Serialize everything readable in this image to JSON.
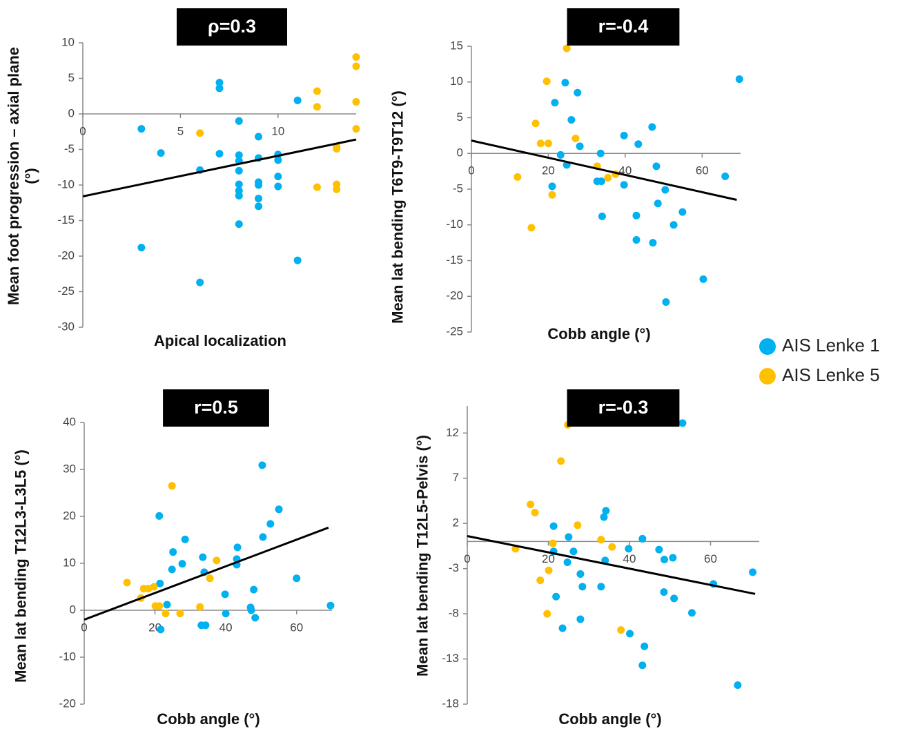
{
  "chart_data": [
    {
      "type": "scatter",
      "title": "ρ=0.3",
      "xlabel": "Apical localization",
      "ylabel": "Mean foot progression – axial plane (°)",
      "xlim": [
        0,
        14
      ],
      "ylim": [
        -30,
        10
      ],
      "xticks": [
        0,
        5,
        10
      ],
      "yticks": [
        -30,
        -25,
        -20,
        -15,
        -10,
        -5,
        0,
        5,
        10
      ],
      "series": [
        {
          "name": "AIS Lenke 1",
          "color": "#00b0f0",
          "x": [
            3,
            4,
            3,
            6,
            6,
            7,
            7,
            7,
            8,
            8,
            8,
            8,
            8,
            8,
            8,
            8,
            9,
            9,
            9,
            9,
            9,
            9,
            10,
            10,
            10,
            10,
            11,
            11
          ],
          "y": [
            -2.1,
            -5.5,
            -18.8,
            -7.9,
            -23.7,
            4.4,
            3.6,
            -5.6,
            -1,
            -5.8,
            -6.6,
            -8,
            -9.9,
            -10.8,
            -11.5,
            -15.5,
            -3.2,
            -6.2,
            -9.6,
            -10,
            -11.9,
            -13,
            -5.7,
            -6.5,
            -8.8,
            -10.2,
            1.9,
            -20.6
          ]
        },
        {
          "name": "AIS Lenke 5",
          "color": "#ffc000",
          "x": [
            6,
            12,
            12,
            12,
            13,
            13,
            13,
            13,
            14,
            14,
            14,
            14
          ],
          "y": [
            -2.7,
            3.2,
            1,
            -10.3,
            -4.6,
            -4.9,
            -9.9,
            -10.6,
            8,
            6.7,
            1.7,
            -2.1
          ]
        }
      ],
      "trendline": {
        "x": [
          0,
          14
        ],
        "y": [
          -11.6,
          -3.6
        ]
      }
    },
    {
      "type": "scatter",
      "title": "r=-0.4",
      "xlabel": "Cobb angle (°)",
      "ylabel": "Mean lat bending T6T9-T9T12 (°)",
      "xlim": [
        0,
        70
      ],
      "ylim": [
        -25,
        15
      ],
      "xticks": [
        0,
        20,
        40,
        60
      ],
      "yticks": [
        -25,
        -20,
        -15,
        -10,
        -5,
        0,
        5,
        10,
        15
      ],
      "series": [
        {
          "name": "AIS Lenke 1",
          "color": "#00b0f0",
          "x": [
            21.7,
            21,
            23.2,
            24.4,
            24.8,
            26,
            27.6,
            28.2,
            33.6,
            32.7,
            33.8,
            34,
            39.7,
            39.7,
            43.4,
            42.9,
            42.9,
            47,
            48.1,
            47.2,
            48.5,
            50.4,
            50.6,
            52.6,
            54.9,
            60.3,
            66,
            69.7
          ],
          "y": [
            7.1,
            -4.6,
            -0.2,
            9.9,
            -1.6,
            4.7,
            8.5,
            1,
            0,
            -3.9,
            -3.9,
            -8.8,
            2.5,
            -4.4,
            1.3,
            -8.7,
            -12.1,
            3.7,
            -1.8,
            -12.5,
            -7,
            -5.1,
            -20.8,
            -10,
            -8.2,
            -17.6,
            -3.2,
            10.4
          ]
        },
        {
          "name": "AIS Lenke 5",
          "color": "#ffc000",
          "x": [
            12,
            15.6,
            16.7,
            18,
            19.6,
            20,
            21,
            24.8,
            27.1,
            32.7,
            35.5,
            37.5
          ],
          "y": [
            -3.3,
            -10.4,
            4.2,
            1.4,
            10.1,
            1.4,
            -5.8,
            14.7,
            2.1,
            -1.8,
            -3.4,
            -2.9
          ]
        }
      ],
      "trendline": {
        "x": [
          0,
          69
        ],
        "y": [
          1.8,
          -6.5
        ]
      }
    },
    {
      "type": "scatter",
      "title": "r=0.5",
      "xlabel": "Cobb angle (°)",
      "ylabel": "Mean lat bending T12L3-L3L5 (°)",
      "xlim": [
        0,
        70
      ],
      "ylim": [
        -20,
        40
      ],
      "xticks": [
        0,
        20,
        40,
        60
      ],
      "yticks": [
        -20,
        -10,
        0,
        10,
        20,
        30,
        40
      ],
      "series": [
        {
          "name": "AIS Lenke 1",
          "color": "#00b0f0",
          "x": [
            21.2,
            21.4,
            21.6,
            23.4,
            24.8,
            25.1,
            27.7,
            28.5,
            33.5,
            33.9,
            33.1,
            34.3,
            39.8,
            40,
            43.1,
            43.1,
            43.3,
            47,
            47.2,
            47.9,
            48.3,
            50.3,
            50.5,
            52.6,
            55,
            60,
            69.6
          ],
          "y": [
            20.1,
            5.7,
            -4.1,
            1.2,
            8.7,
            12.4,
            9.9,
            15.1,
            11.3,
            8.1,
            -3.2,
            -3.2,
            3.4,
            -0.7,
            10.9,
            9.7,
            13.4,
            0.6,
            0,
            4.4,
            -1.6,
            30.9,
            15.6,
            18.4,
            21.5,
            6.8,
            1
          ]
        },
        {
          "name": "AIS Lenke 5",
          "color": "#ffc000",
          "x": [
            12.1,
            16,
            16.8,
            18.1,
            19.7,
            20.1,
            21.2,
            23,
            24.8,
            27.1,
            32.7,
            35.5,
            37.4
          ],
          "y": [
            5.9,
            2.6,
            4.6,
            4.6,
            5,
            0.9,
            0.9,
            -0.7,
            26.5,
            -0.7,
            0.7,
            6.8,
            10.6
          ]
        }
      ],
      "trendline": {
        "x": [
          0,
          69
        ],
        "y": [
          -2,
          17.6
        ]
      }
    },
    {
      "type": "scatter",
      "title": "r=-0.3",
      "xlabel": "Cobb angle (°)",
      "ylabel": "Mean lat bending T12L5-Pelvis (°)",
      "xlim": [
        0,
        72
      ],
      "ylim": [
        -18,
        15
      ],
      "xticks": [
        0,
        20,
        40,
        60
      ],
      "yticks": [
        -18,
        -13,
        -8,
        -3,
        2,
        7,
        12
      ],
      "series": [
        {
          "name": "AIS Lenke 1",
          "color": "#00b0f0",
          "x": [
            21.3,
            21.3,
            21.9,
            23.5,
            24.7,
            25,
            26.2,
            27.9,
            27.9,
            28.4,
            33,
            33.7,
            34.2,
            34,
            39.8,
            40.1,
            43.2,
            43.7,
            43.2,
            47.3,
            48.6,
            48.5,
            50.7,
            51,
            53.1,
            55.4,
            60.7,
            66.7,
            70.4
          ],
          "y": [
            1.7,
            -1.1,
            -6.1,
            -9.6,
            -2.3,
            0.5,
            -1.1,
            -3.6,
            -8.6,
            -5,
            -5,
            2.7,
            3.4,
            -2.1,
            -0.8,
            -10.2,
            0.3,
            -11.6,
            -13.7,
            -0.9,
            -2,
            -5.6,
            -1.8,
            -6.3,
            13.1,
            -7.9,
            -4.7,
            -15.9,
            -3.4
          ]
        },
        {
          "name": "AIS Lenke 5",
          "color": "#ffc000",
          "x": [
            11.9,
            15.6,
            16.7,
            18,
            19.7,
            20.1,
            21.1,
            23.1,
            24.8,
            27.2,
            33,
            35.7,
            37.9
          ],
          "y": [
            -0.8,
            4.1,
            3.2,
            -4.3,
            -8,
            -3.2,
            -0.2,
            8.9,
            12.9,
            1.8,
            0.2,
            -0.6,
            -9.8
          ]
        }
      ],
      "trendline": {
        "x": [
          0,
          71
        ],
        "y": [
          0.6,
          -5.8
        ]
      }
    }
  ]
}
